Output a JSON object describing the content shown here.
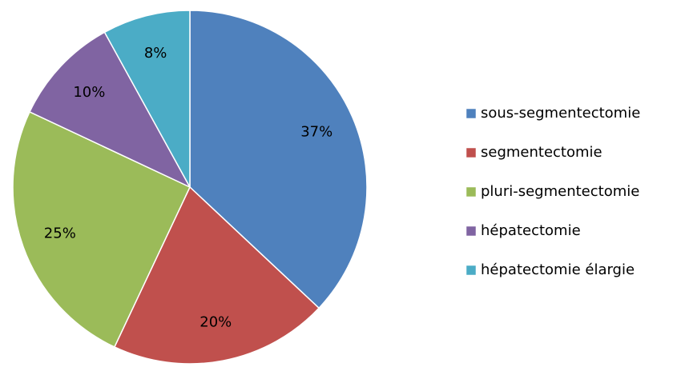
{
  "chart_data": {
    "type": "pie",
    "categories": [
      "sous-segmentectomie",
      "segmentectomie",
      "pluri-segmentectomie",
      "hépatectomie",
      "hépatectomie élargie"
    ],
    "values": [
      37,
      20,
      25,
      10,
      8
    ],
    "value_labels": [
      "37%",
      "20%",
      "25%",
      "10%",
      "8%"
    ],
    "colors": [
      "#4f81bd",
      "#c0504d",
      "#9bbb59",
      "#8064a2",
      "#4bacc6"
    ],
    "legend": "right"
  }
}
